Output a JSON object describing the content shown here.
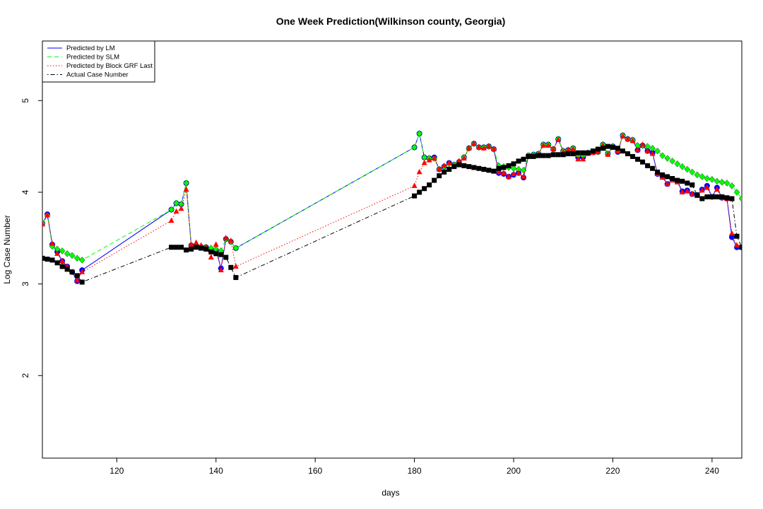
{
  "chart_data": {
    "type": "line",
    "title": "One Week Prediction(Wilkinson county, Georgia)",
    "xlabel": "days",
    "ylabel": "Log Case Number",
    "xlim": [
      105,
      246
    ],
    "ylim": [
      1.1,
      5.65
    ],
    "xticks": [
      120,
      140,
      160,
      180,
      200,
      220,
      240
    ],
    "yticks": [
      2,
      3,
      4,
      5
    ],
    "legend_position": "top-left",
    "series": [
      {
        "name": "Predicted by LM",
        "color": "#0000ff",
        "dash": "solid",
        "marker": "circle",
        "x": [
          105,
          106,
          107,
          108,
          109,
          110,
          111,
          112,
          113,
          131,
          132,
          133,
          134,
          135,
          136,
          137,
          138,
          139,
          140,
          141,
          142,
          143,
          144,
          180,
          181,
          182,
          183,
          184,
          185,
          186,
          187,
          188,
          189,
          190,
          191,
          192,
          193,
          194,
          195,
          196,
          197,
          198,
          199,
          200,
          201,
          202,
          203,
          204,
          205,
          206,
          207,
          208,
          209,
          210,
          211,
          212,
          213,
          214,
          215,
          216,
          217,
          218,
          219,
          220,
          221,
          222,
          223,
          224,
          225,
          226,
          227,
          228,
          229,
          230,
          231,
          232,
          233,
          234,
          235,
          236,
          237,
          238,
          239,
          240,
          241,
          242,
          243,
          244,
          245,
          246
        ],
        "y": [
          3.66,
          3.76,
          3.43,
          3.35,
          3.25,
          3.19,
          3.13,
          3.03,
          3.15,
          3.81,
          3.88,
          3.87,
          4.1,
          3.42,
          3.42,
          3.4,
          3.4,
          3.36,
          3.37,
          3.17,
          3.49,
          3.46,
          3.39,
          4.49,
          4.64,
          4.38,
          4.37,
          4.38,
          4.25,
          4.28,
          4.32,
          4.3,
          4.33,
          4.38,
          4.48,
          4.53,
          4.49,
          4.49,
          4.5,
          4.47,
          4.21,
          4.2,
          4.17,
          4.19,
          4.21,
          4.16,
          4.4,
          4.41,
          4.42,
          4.52,
          4.52,
          4.47,
          4.58,
          4.45,
          4.46,
          4.48,
          4.38,
          4.38,
          4.43,
          4.44,
          4.44,
          4.52,
          4.42,
          4.5,
          4.44,
          4.62,
          4.58,
          4.57,
          4.46,
          4.51,
          4.45,
          4.43,
          4.2,
          4.17,
          4.09,
          4.14,
          4.12,
          4.01,
          4.02,
          3.98,
          3.97,
          4.03,
          4.07,
          3.95,
          4.05,
          3.94,
          3.93,
          3.51,
          3.4,
          3.4
        ]
      },
      {
        "name": "Predicted by SLM",
        "color": "#00ff00",
        "dash": "dashed",
        "marker": "diamond",
        "x": [
          105,
          106,
          107,
          108,
          109,
          110,
          111,
          112,
          113,
          131,
          132,
          133,
          134,
          135,
          136,
          137,
          138,
          139,
          140,
          141,
          142,
          143,
          144,
          180,
          181,
          182,
          183,
          184,
          185,
          186,
          187,
          188,
          189,
          190,
          191,
          192,
          193,
          194,
          195,
          196,
          197,
          198,
          199,
          200,
          201,
          202,
          203,
          204,
          205,
          206,
          207,
          208,
          209,
          210,
          211,
          212,
          213,
          214,
          215,
          216,
          217,
          218,
          219,
          220,
          221,
          222,
          223,
          224,
          225,
          226,
          227,
          228,
          229,
          230,
          231,
          232,
          233,
          234,
          235,
          236,
          237,
          238,
          239,
          240,
          241,
          242,
          243,
          244,
          245,
          246
        ],
        "y": [
          3.66,
          3.75,
          3.41,
          3.38,
          3.36,
          3.33,
          3.31,
          3.28,
          3.26,
          3.81,
          3.88,
          3.87,
          4.1,
          3.42,
          3.42,
          3.41,
          3.4,
          3.39,
          3.38,
          3.36,
          3.49,
          3.46,
          3.39,
          4.49,
          4.64,
          4.38,
          4.37,
          4.37,
          4.25,
          4.28,
          4.31,
          4.3,
          4.33,
          4.38,
          4.48,
          4.53,
          4.49,
          4.49,
          4.5,
          4.47,
          4.29,
          4.28,
          4.27,
          4.26,
          4.25,
          4.24,
          4.4,
          4.41,
          4.42,
          4.52,
          4.52,
          4.47,
          4.58,
          4.45,
          4.46,
          4.48,
          4.4,
          4.4,
          4.43,
          4.44,
          4.44,
          4.52,
          4.42,
          4.5,
          4.45,
          4.62,
          4.58,
          4.57,
          4.51,
          4.51,
          4.5,
          4.48,
          4.45,
          4.4,
          4.37,
          4.34,
          4.31,
          4.28,
          4.25,
          4.22,
          4.19,
          4.17,
          4.15,
          4.14,
          4.12,
          4.11,
          4.1,
          4.07,
          4.0,
          3.93
        ]
      },
      {
        "name": "Predicted by Block GRF Last",
        "color": "#ff0000",
        "dash": "dotted",
        "marker": "triangle",
        "x": [
          105,
          106,
          107,
          108,
          109,
          110,
          111,
          112,
          113,
          131,
          132,
          133,
          134,
          135,
          136,
          137,
          138,
          139,
          140,
          141,
          142,
          143,
          144,
          180,
          181,
          182,
          183,
          184,
          185,
          186,
          187,
          188,
          189,
          190,
          191,
          192,
          193,
          194,
          195,
          196,
          197,
          198,
          199,
          200,
          201,
          202,
          203,
          204,
          205,
          206,
          207,
          208,
          209,
          210,
          211,
          212,
          213,
          214,
          215,
          216,
          217,
          218,
          219,
          220,
          221,
          222,
          223,
          224,
          225,
          226,
          227,
          228,
          229,
          230,
          231,
          232,
          233,
          234,
          235,
          236,
          237,
          238,
          239,
          240,
          241,
          242,
          243,
          244,
          245,
          246
        ],
        "y": [
          3.65,
          3.75,
          3.44,
          3.33,
          3.25,
          3.19,
          3.13,
          3.04,
          3.13,
          3.69,
          3.79,
          3.82,
          4.03,
          3.43,
          3.45,
          3.42,
          3.4,
          3.29,
          3.43,
          3.15,
          3.5,
          3.47,
          3.19,
          4.07,
          4.22,
          4.32,
          4.35,
          4.37,
          4.25,
          4.29,
          4.32,
          4.29,
          4.34,
          4.37,
          4.48,
          4.53,
          4.49,
          4.48,
          4.5,
          4.47,
          4.22,
          4.21,
          4.17,
          4.2,
          4.21,
          4.17,
          4.39,
          4.4,
          4.41,
          4.51,
          4.51,
          4.47,
          4.57,
          4.44,
          4.46,
          4.47,
          4.36,
          4.36,
          4.42,
          4.43,
          4.44,
          4.51,
          4.41,
          4.49,
          4.45,
          4.61,
          4.58,
          4.56,
          4.46,
          4.52,
          4.45,
          4.42,
          4.2,
          4.16,
          4.09,
          4.13,
          4.11,
          4.0,
          4.01,
          3.98,
          3.96,
          4.02,
          4.05,
          3.95,
          4.03,
          3.94,
          3.93,
          3.55,
          3.42,
          3.4
        ]
      },
      {
        "name": "Actual Case Number",
        "color": "#000000",
        "dash": "dotdash",
        "marker": "square",
        "x": [
          105,
          106,
          107,
          108,
          109,
          110,
          111,
          112,
          113,
          131,
          132,
          133,
          134,
          135,
          136,
          137,
          138,
          139,
          140,
          141,
          142,
          143,
          144,
          180,
          181,
          182,
          183,
          184,
          185,
          186,
          187,
          188,
          189,
          190,
          191,
          192,
          193,
          194,
          195,
          196,
          197,
          198,
          199,
          200,
          201,
          202,
          203,
          204,
          205,
          206,
          207,
          208,
          209,
          210,
          211,
          212,
          213,
          214,
          215,
          216,
          217,
          218,
          219,
          220,
          221,
          222,
          223,
          224,
          225,
          226,
          227,
          228,
          229,
          230,
          231,
          232,
          233,
          234,
          235,
          236,
          237,
          238,
          239,
          240,
          241,
          242,
          243,
          244,
          245,
          246
        ],
        "y": [
          3.28,
          3.27,
          3.26,
          3.23,
          3.19,
          3.16,
          3.13,
          3.09,
          3.02,
          3.4,
          3.4,
          3.4,
          3.37,
          3.38,
          3.4,
          3.39,
          3.38,
          3.35,
          3.33,
          3.32,
          3.29,
          3.18,
          3.07,
          3.96,
          4.0,
          4.04,
          4.08,
          4.13,
          4.18,
          4.22,
          4.25,
          4.28,
          4.3,
          4.29,
          4.28,
          4.27,
          4.26,
          4.25,
          4.24,
          4.23,
          4.26,
          4.27,
          4.29,
          4.31,
          4.34,
          4.36,
          4.39,
          4.39,
          4.4,
          4.4,
          4.4,
          4.41,
          4.41,
          4.41,
          4.42,
          4.42,
          4.43,
          4.43,
          4.43,
          4.45,
          4.47,
          4.48,
          4.5,
          4.49,
          4.48,
          4.45,
          4.42,
          4.39,
          4.36,
          4.33,
          4.29,
          4.26,
          4.22,
          4.19,
          4.17,
          4.15,
          4.13,
          4.12,
          4.1,
          4.08,
          3.97,
          3.93,
          3.95,
          3.95,
          3.95,
          3.95,
          3.94,
          3.93,
          3.52,
          3.4
        ]
      }
    ]
  }
}
